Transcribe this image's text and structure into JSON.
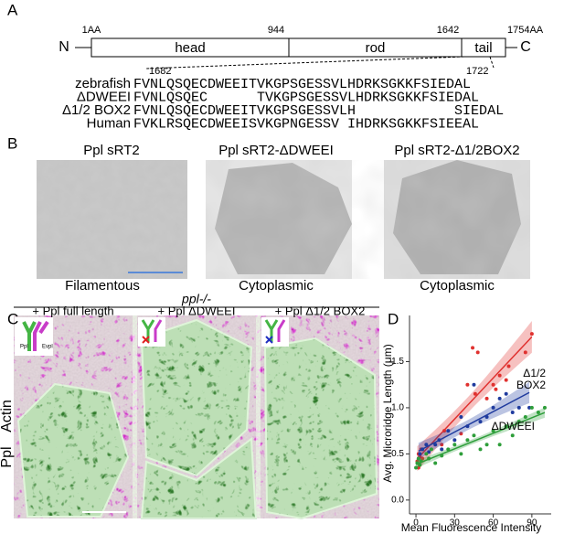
{
  "panels": {
    "a": {
      "label": "A",
      "n_term": "N",
      "c_term": "C",
      "domains": [
        "head",
        "rod",
        "tail"
      ],
      "positions": [
        "1AA",
        "944",
        "1642",
        "1754AA"
      ],
      "range": [
        "1682",
        "1722"
      ],
      "alignment": [
        {
          "name": "zebrafish",
          "seq": "FVNLQSQECDWEEITVKGPSGESSVLHDRKSGKKFSIEDAL"
        },
        {
          "name": "ΔDWEEI",
          "seq": "FVNLQSQEC      TVKGPSGESSVLHDRKSGKKFSIEDAL"
        },
        {
          "name": "Δ1/2 BOX2",
          "seq": "FVNLQSQECDWEEITVKGPSGESSVLH            SIEDAL"
        },
        {
          "name": "Human",
          "seq": "FVKLRSQECDWEEISVKGPNGESSV IHDRKSGKKFSIEEAL"
        }
      ]
    },
    "b": {
      "label": "B",
      "titles": [
        "Ppl sRT2",
        "Ppl sRT2-ΔDWEEI",
        "Ppl sRT2-Δ1/2BOX2"
      ],
      "captions": [
        "Filamentous",
        "Cytoplasmic",
        "Cytoplasmic"
      ]
    },
    "c": {
      "label": "C",
      "genotype": "ppl-/-",
      "titles": [
        "+ Ppl full length",
        "+ Ppl ΔDWEEI",
        "+ Ppl Δ1/2 BOX2"
      ],
      "channels": [
        "Ppl",
        "Actin"
      ],
      "icon_labels": [
        "Ppl",
        "Evpl"
      ]
    },
    "d": {
      "label": "D"
    }
  },
  "chart_data": {
    "type": "scatter",
    "xlabel": "Mean Fluorescence Intensity",
    "ylabel": "Avg. Microridge Length (μm)",
    "xlim": [
      -5,
      105
    ],
    "xticks": [
      0,
      30,
      60,
      90
    ],
    "ylim": [
      -0.15,
      2.0
    ],
    "yticks": [
      {
        "value": 0,
        "label": "0.0"
      },
      {
        "value": 0.5,
        "label": "0.5"
      },
      {
        "value": 1,
        "label": "1.0"
      },
      {
        "value": 1.5,
        "label": "1.5"
      }
    ],
    "series": [
      {
        "color": "#e0312f",
        "x": [
          1,
          2,
          3,
          3,
          4,
          5,
          2,
          20,
          22,
          35,
          40,
          44,
          46,
          48,
          55,
          60,
          62,
          65,
          70,
          72,
          85,
          90
        ],
        "values": [
          0.42,
          0.5,
          0.38,
          0.47,
          0.55,
          0.45,
          0.35,
          0.6,
          0.75,
          0.72,
          1.25,
          1.65,
          1.15,
          1.6,
          1.1,
          1.25,
          1.2,
          1.35,
          1.3,
          1.45,
          1.6,
          1.8
        ]
      },
      {
        "name": "Δ1/2 BOX2",
        "color": "#1f3b9e",
        "x": [
          2,
          3,
          5,
          8,
          10,
          15,
          18,
          20,
          25,
          30,
          35,
          40,
          45,
          50,
          55,
          60,
          65,
          70,
          75,
          80,
          88
        ],
        "values": [
          0.45,
          0.5,
          0.55,
          0.6,
          0.52,
          0.6,
          0.65,
          0.55,
          0.75,
          0.65,
          0.9,
          0.8,
          1.25,
          0.85,
          0.9,
          1.0,
          1.1,
          1.15,
          0.95,
          1.0,
          1.0
        ]
      },
      {
        "name": "ΔDWEEI",
        "color": "#2e9e3a",
        "x": [
          0,
          1,
          2,
          3,
          4,
          8,
          10,
          12,
          15,
          20,
          25,
          30,
          35,
          40,
          45,
          50,
          55,
          60,
          65,
          70,
          75,
          80,
          85,
          90,
          95,
          100
        ],
        "values": [
          0.35,
          0.4,
          0.45,
          0.38,
          0.42,
          0.5,
          0.45,
          0.55,
          0.4,
          0.48,
          0.55,
          0.6,
          0.5,
          0.65,
          0.7,
          0.55,
          0.6,
          0.75,
          0.6,
          0.8,
          0.7,
          0.85,
          0.9,
          1.0,
          0.95,
          1.0
        ]
      }
    ]
  }
}
